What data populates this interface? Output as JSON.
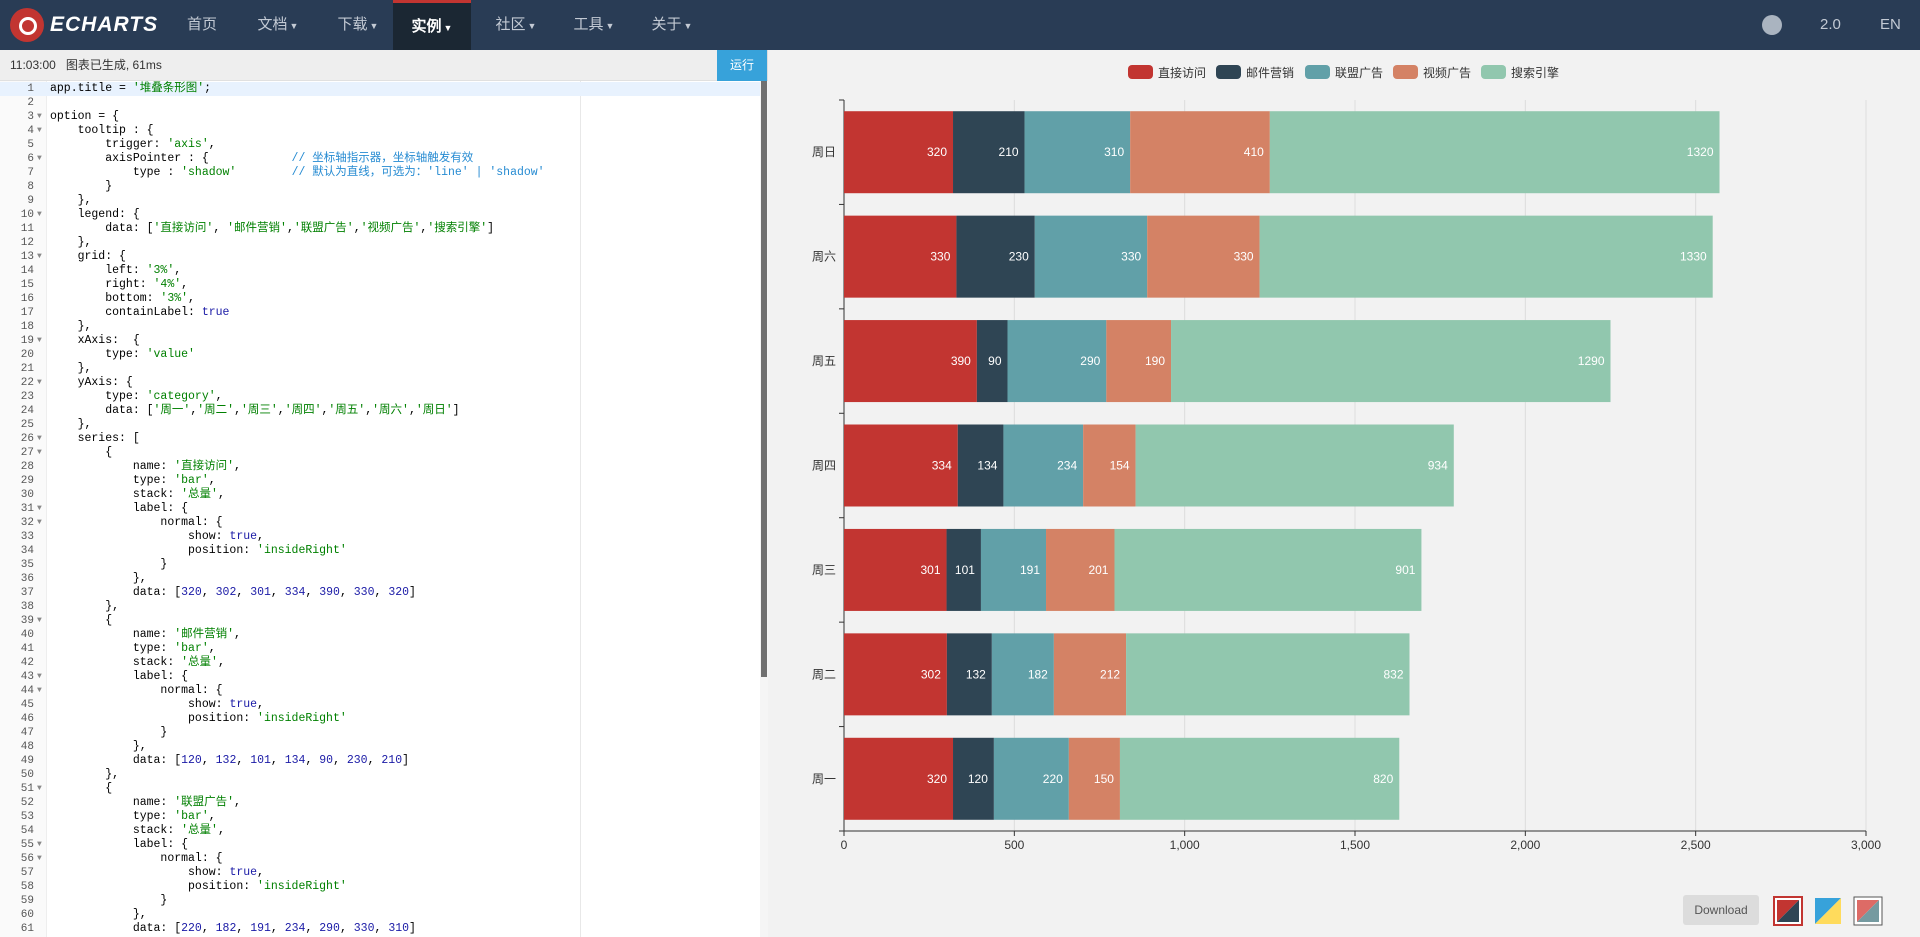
{
  "nav": {
    "logo_text": "ECHARTS",
    "items": [
      {
        "label": "首页",
        "caret": false
      },
      {
        "label": "文档",
        "caret": true
      },
      {
        "label": "下载",
        "caret": true
      },
      {
        "label": "实例",
        "caret": true,
        "active": true
      },
      {
        "label": "社区",
        "caret": true
      },
      {
        "label": "工具",
        "caret": true
      },
      {
        "label": "关于",
        "caret": true
      }
    ],
    "version": "2.0",
    "lang": "EN",
    "github_icon": "github-icon"
  },
  "editor": {
    "status_time": "11:03:00",
    "status_msg": "图表已生成, 61ms",
    "run_label": "运行",
    "lines": [
      "app.title = '堆叠条形图';",
      "",
      "option = {",
      "    tooltip : {",
      "        trigger: 'axis',",
      "        axisPointer : {            // 坐标轴指示器，坐标轴触发有效",
      "            type : 'shadow'        // 默认为直线，可选为：'line' | 'shadow'",
      "        }",
      "    },",
      "    legend: {",
      "        data: ['直接访问', '邮件营销','联盟广告','视频广告','搜索引擎']",
      "    },",
      "    grid: {",
      "        left: '3%',",
      "        right: '4%',",
      "        bottom: '3%',",
      "        containLabel: true",
      "    },",
      "    xAxis:  {",
      "        type: 'value'",
      "    },",
      "    yAxis: {",
      "        type: 'category',",
      "        data: ['周一','周二','周三','周四','周五','周六','周日']",
      "    },",
      "    series: [",
      "        {",
      "            name: '直接访问',",
      "            type: 'bar',",
      "            stack: '总量',",
      "            label: {",
      "                normal: {",
      "                    show: true,",
      "                    position: 'insideRight'",
      "                }",
      "            },",
      "            data: [320, 302, 301, 334, 390, 330, 320]",
      "        },",
      "        {",
      "            name: '邮件营销',",
      "            type: 'bar',",
      "            stack: '总量',",
      "            label: {",
      "                normal: {",
      "                    show: true,",
      "                    position: 'insideRight'",
      "                }",
      "            },",
      "            data: [120, 132, 101, 134, 90, 230, 210]",
      "        },",
      "        {",
      "            name: '联盟广告',",
      "            type: 'bar',",
      "            stack: '总量',",
      "            label: {",
      "                normal: {",
      "                    show: true,",
      "                    position: 'insideRight'",
      "                }",
      "            },",
      "            data: [220, 182, 191, 234, 290, 330, 310]"
    ],
    "fold_lines": [
      3,
      4,
      6,
      10,
      13,
      19,
      22,
      26,
      27,
      31,
      32,
      39,
      43,
      44,
      51,
      55,
      56
    ]
  },
  "chart_data": {
    "type": "bar",
    "orientation": "horizontal",
    "stacked": true,
    "categories": [
      "周一",
      "周二",
      "周三",
      "周四",
      "周五",
      "周六",
      "周日"
    ],
    "series": [
      {
        "name": "直接访问",
        "color": "#c23531",
        "values": [
          320,
          302,
          301,
          334,
          390,
          330,
          320
        ]
      },
      {
        "name": "邮件营销",
        "color": "#2f4554",
        "values": [
          120,
          132,
          101,
          134,
          90,
          230,
          210
        ]
      },
      {
        "name": "联盟广告",
        "color": "#61a0a8",
        "values": [
          220,
          182,
          191,
          234,
          290,
          330,
          310
        ]
      },
      {
        "name": "视频广告",
        "color": "#d48265",
        "values": [
          150,
          212,
          201,
          154,
          190,
          330,
          410
        ]
      },
      {
        "name": "搜索引擎",
        "color": "#91c7ae",
        "values": [
          820,
          832,
          901,
          934,
          1290,
          1330,
          1320
        ]
      }
    ],
    "xlim": [
      0,
      3000
    ],
    "xticks": [
      0,
      500,
      1000,
      1500,
      2000,
      2500,
      3000
    ],
    "xtick_labels": [
      "0",
      "500",
      "1,000",
      "1,500",
      "2,000",
      "2,500",
      "3,000"
    ],
    "grid": true,
    "legend_position": "top-center",
    "data_labels": true
  },
  "toolbar": {
    "download_label": "Download",
    "themes": [
      "theme-default-icon",
      "theme-light-icon",
      "theme-dark-icon"
    ]
  }
}
